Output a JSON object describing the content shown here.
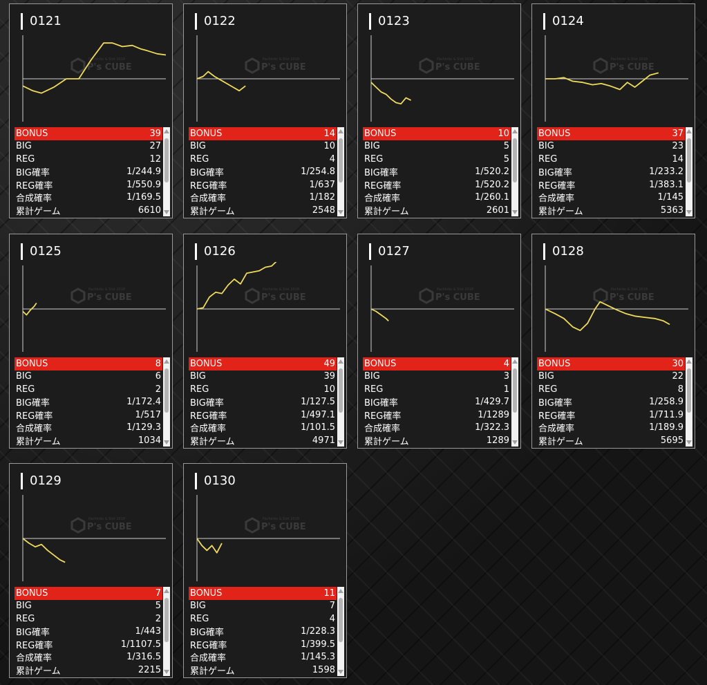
{
  "watermark": {
    "main": "P's CUBE",
    "sub": "Pachinko & Slot 2018"
  },
  "colors": {
    "line": "#f0dc5a",
    "bonus_bg": "#e2231a",
    "axis": "#cfcfcf"
  },
  "row_labels": [
    "BONUS",
    "BIG",
    "REG",
    "BIG確率",
    "REG確率",
    "合成確率",
    "累計ゲーム"
  ],
  "machines": [
    {
      "id": "0121",
      "stats": [
        "39",
        "27",
        "12",
        "1/244.9",
        "1/550.9",
        "1/169.5",
        "6610"
      ],
      "chart_data": {
        "type": "line",
        "points": [
          [
            0,
            -300
          ],
          [
            8,
            -500
          ],
          [
            15,
            -600
          ],
          [
            25,
            -350
          ],
          [
            35,
            0
          ],
          [
            45,
            0
          ],
          [
            55,
            800
          ],
          [
            65,
            1500
          ],
          [
            72,
            1500
          ],
          [
            80,
            1350
          ],
          [
            88,
            1400
          ],
          [
            95,
            1250
          ],
          [
            100,
            1180
          ],
          [
            108,
            1050
          ],
          [
            115,
            1000
          ]
        ]
      }
    },
    {
      "id": "0122",
      "stats": [
        "14",
        "10",
        "4",
        "1/254.8",
        "1/637",
        "1/182",
        "2548"
      ],
      "chart_data": {
        "type": "line",
        "points": [
          [
            0,
            0
          ],
          [
            5,
            100
          ],
          [
            9,
            300
          ],
          [
            14,
            100
          ],
          [
            19,
            -50
          ],
          [
            24,
            -200
          ],
          [
            29,
            -350
          ],
          [
            34,
            -500
          ],
          [
            39,
            -300
          ]
        ]
      }
    },
    {
      "id": "0123",
      "stats": [
        "10",
        "5",
        "5",
        "1/520.2",
        "1/520.2",
        "1/260.1",
        "2601"
      ],
      "chart_data": {
        "type": "line",
        "points": [
          [
            0,
            -150
          ],
          [
            4,
            -350
          ],
          [
            8,
            -550
          ],
          [
            12,
            -650
          ],
          [
            16,
            -850
          ],
          [
            20,
            -1000
          ],
          [
            24,
            -1050
          ],
          [
            28,
            -800
          ],
          [
            32,
            -900
          ]
        ]
      }
    },
    {
      "id": "0124",
      "stats": [
        "37",
        "23",
        "14",
        "1/233.2",
        "1/383.1",
        "1/145",
        "5363"
      ],
      "chart_data": {
        "type": "line",
        "points": [
          [
            0,
            0
          ],
          [
            8,
            0
          ],
          [
            15,
            50
          ],
          [
            22,
            -100
          ],
          [
            30,
            -150
          ],
          [
            38,
            -250
          ],
          [
            45,
            -200
          ],
          [
            52,
            -300
          ],
          [
            60,
            -450
          ],
          [
            66,
            -150
          ],
          [
            72,
            -350
          ],
          [
            78,
            -100
          ],
          [
            84,
            150
          ],
          [
            91,
            250
          ]
        ]
      }
    },
    {
      "id": "0125",
      "stats": [
        "8",
        "6",
        "2",
        "1/172.4",
        "1/517",
        "1/129.3",
        "1034"
      ],
      "chart_data": {
        "type": "line",
        "points": [
          [
            0,
            -100
          ],
          [
            3,
            -250
          ],
          [
            6,
            -50
          ],
          [
            9,
            100
          ],
          [
            11,
            250
          ]
        ]
      }
    },
    {
      "id": "0126",
      "stats": [
        "49",
        "39",
        "10",
        "1/127.5",
        "1/497.1",
        "1/101.5",
        "4971"
      ],
      "chart_data": {
        "type": "line",
        "points": [
          [
            0,
            0
          ],
          [
            5,
            50
          ],
          [
            10,
            500
          ],
          [
            15,
            700
          ],
          [
            20,
            650
          ],
          [
            25,
            1000
          ],
          [
            30,
            1250
          ],
          [
            35,
            1050
          ],
          [
            40,
            1500
          ],
          [
            45,
            1550
          ],
          [
            50,
            1600
          ],
          [
            55,
            1750
          ],
          [
            60,
            1800
          ],
          [
            65,
            2050
          ],
          [
            70,
            2350
          ],
          [
            75,
            2500
          ],
          [
            78,
            2700
          ],
          [
            81,
            2750
          ]
        ]
      }
    },
    {
      "id": "0127",
      "stats": [
        "4",
        "3",
        "1",
        "1/429.7",
        "1/1289",
        "1/322.3",
        "1289"
      ],
      "chart_data": {
        "type": "line",
        "points": [
          [
            0,
            0
          ],
          [
            4,
            -100
          ],
          [
            8,
            -250
          ],
          [
            12,
            -400
          ],
          [
            14,
            -500
          ]
        ]
      }
    },
    {
      "id": "0128",
      "stats": [
        "30",
        "22",
        "8",
        "1/258.9",
        "1/711.9",
        "1/189.9",
        "5695"
      ],
      "chart_data": {
        "type": "line",
        "points": [
          [
            0,
            0
          ],
          [
            8,
            -200
          ],
          [
            15,
            -400
          ],
          [
            22,
            -750
          ],
          [
            28,
            -900
          ],
          [
            34,
            -600
          ],
          [
            40,
            0
          ],
          [
            44,
            300
          ],
          [
            50,
            150
          ],
          [
            58,
            -50
          ],
          [
            65,
            -200
          ],
          [
            72,
            -300
          ],
          [
            80,
            -350
          ],
          [
            88,
            -400
          ],
          [
            95,
            -500
          ],
          [
            100,
            -650
          ]
        ]
      }
    },
    {
      "id": "0129",
      "stats": [
        "7",
        "5",
        "2",
        "1/443",
        "1/1107.5",
        "1/316.5",
        "2215"
      ],
      "chart_data": {
        "type": "line",
        "points": [
          [
            0,
            0
          ],
          [
            5,
            -200
          ],
          [
            10,
            -350
          ],
          [
            15,
            -250
          ],
          [
            20,
            -500
          ],
          [
            25,
            -700
          ],
          [
            30,
            -900
          ],
          [
            34,
            -1000
          ]
        ]
      }
    },
    {
      "id": "0130",
      "stats": [
        "11",
        "7",
        "4",
        "1/228.3",
        "1/399.5",
        "1/145.3",
        "1598"
      ],
      "chart_data": {
        "type": "line",
        "points": [
          [
            0,
            0
          ],
          [
            4,
            -300
          ],
          [
            8,
            -500
          ],
          [
            12,
            -300
          ],
          [
            16,
            -600
          ],
          [
            20,
            -200
          ]
        ]
      }
    }
  ]
}
